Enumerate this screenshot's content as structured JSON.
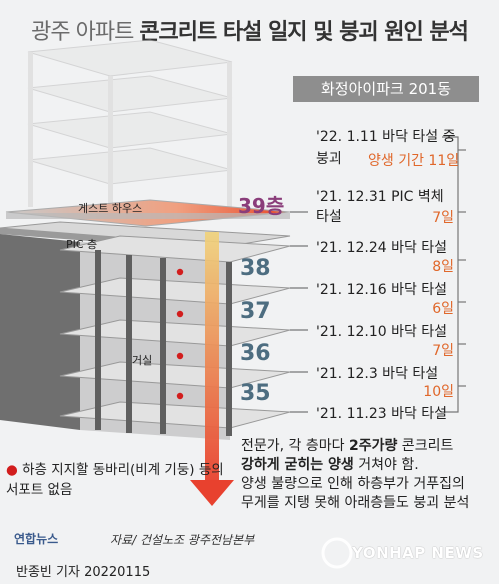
{
  "title_light": "광주 아파트",
  "title_bold": "콘크리트 타설 일지 및 붕괴 원인 분석",
  "building_label": "화정아이파크 201동",
  "guest_house_label": "게스트 하우스",
  "pic_floor_label": "PIC 층",
  "living_room_label": "거실",
  "floors": [
    "39층",
    "38",
    "37",
    "36",
    "35"
  ],
  "timeline": [
    {
      "event_line1": "'22. 1.11 바닥 타설 중",
      "event_line2": "붕괴",
      "days": "양생 기간 11일"
    },
    {
      "event_line1": "'21. 12.31 PIC 벽체",
      "event_line2": "타설",
      "days": "7일"
    },
    {
      "event_line1": "'21. 12.24 바닥 타설",
      "days": "8일"
    },
    {
      "event_line1": "'21. 12.16 바닥 타설",
      "days": "6일"
    },
    {
      "event_line1": "'21. 12.10 바닥 타설",
      "days": "7일"
    },
    {
      "event_line1": "'21. 12.3 바닥 타설",
      "days": "10일"
    },
    {
      "event_line1": "'21. 11.23 바닥 타설"
    }
  ],
  "expert_prefix": "전문가, 각 층마다 ",
  "expert_bold1": "2주가량",
  "expert_mid": " 콘크리트",
  "expert_bold2": "강하게 굳히는 양생",
  "expert_rest": " 거쳐야 함.",
  "expert_line3": "양생 불량으로 인해 하층부가 거푸집의",
  "expert_line4": "무게를 지탱 못해 아래층들도 붕괴 분석",
  "note_bullet": "●",
  "note_text": "하층 지지할 동바리(비계 기둥) 등의 서포트 없음",
  "logo_text": "연합뉴스",
  "source_text": "자료/ 건설노조 광주전남본부",
  "yonhap_text": "YONHAP NEWS",
  "byline": "반종빈 기자  20220115",
  "colors": {
    "accent_orange": "#e0672a",
    "floor_blue": "#4d6d80",
    "floor39_purple": "#8a3d7a",
    "dot_red": "#d21d1d"
  }
}
